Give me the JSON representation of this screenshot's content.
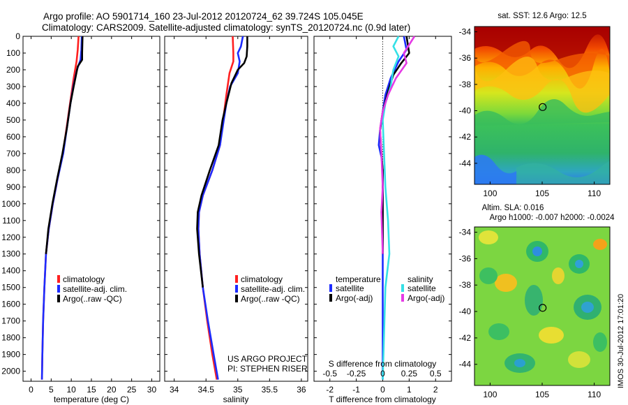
{
  "header": {
    "line1": "Argo profile: AO 5901714_160 23-Jul-2012 20120724_62 39.724S 105.045E",
    "line2": "Climatology: CARS2009. Satellite-adjusted climatology: synTS_20120724.nc (0.9d later)"
  },
  "colors": {
    "climatology": "#ff2020",
    "satellite": "#1c2bff",
    "argo": "#000000",
    "sal_satellite": "#35e0e6",
    "sal_argo": "#e53ae5"
  },
  "depth_ticks": [
    "0",
    "100",
    "200",
    "300",
    "400",
    "500",
    "600",
    "700",
    "800",
    "900",
    "1000",
    "1100",
    "1200",
    "1300",
    "1400",
    "1500",
    "1600",
    "1700",
    "1800",
    "1900",
    "2000"
  ],
  "chart_data": [
    {
      "type": "line",
      "id": "temperature",
      "xlabel": "temperature (deg C)",
      "ylabel": "",
      "xlim": [
        -2,
        32
      ],
      "ylim": [
        2060,
        0
      ],
      "xticks": [
        0,
        5,
        10,
        15,
        20,
        25,
        30
      ],
      "xtick_labels": [
        "0",
        "5",
        "10",
        "15",
        "20",
        "25",
        "30"
      ],
      "legend": [
        "climatology",
        "satellite-adj. clim.",
        "Argo(..raw -QC)"
      ],
      "series": [
        {
          "name": "climatology",
          "color": "#ff2020",
          "points": [
            [
              11.8,
              0
            ],
            [
              11.6,
              80
            ],
            [
              11.3,
              150
            ],
            [
              10.6,
              250
            ],
            [
              9.7,
              400
            ],
            [
              8.8,
              550
            ],
            [
              7.9,
              700
            ],
            [
              6.6,
              850
            ],
            [
              5.4,
              1000
            ],
            [
              4.4,
              1150
            ],
            [
              3.7,
              1300
            ],
            [
              3.3,
              1500
            ],
            [
              3.0,
              1700
            ],
            [
              2.8,
              1900
            ],
            [
              2.7,
              2050
            ]
          ]
        },
        {
          "name": "satellite-adj. clim.",
          "color": "#1c2bff",
          "points": [
            [
              12.6,
              0
            ],
            [
              12.5,
              80
            ],
            [
              12.3,
              140
            ],
            [
              11.4,
              200
            ],
            [
              10.5,
              300
            ],
            [
              9.8,
              400
            ],
            [
              8.9,
              550
            ],
            [
              8.0,
              700
            ],
            [
              6.6,
              850
            ],
            [
              5.4,
              1000
            ],
            [
              4.4,
              1150
            ],
            [
              3.7,
              1300
            ],
            [
              3.3,
              1500
            ],
            [
              3.0,
              1700
            ],
            [
              2.8,
              1900
            ],
            [
              2.7,
              2050
            ]
          ]
        },
        {
          "name": "Argo(..raw -QC)",
          "color": "#000000",
          "points": [
            [
              12.8,
              0
            ],
            [
              12.7,
              100
            ],
            [
              12.7,
              140
            ],
            [
              11.6,
              180
            ],
            [
              10.6,
              300
            ],
            [
              9.8,
              400
            ],
            [
              8.9,
              550
            ],
            [
              7.8,
              700
            ],
            [
              6.5,
              850
            ],
            [
              5.3,
              1000
            ],
            [
              4.3,
              1150
            ],
            [
              3.7,
              1300
            ]
          ]
        }
      ]
    },
    {
      "type": "line",
      "id": "salinity",
      "xlabel": "salinity",
      "ylabel": "",
      "xlim": [
        33.85,
        36.1
      ],
      "xticks": [
        34,
        34.5,
        35,
        35.5,
        36
      ],
      "xtick_labels": [
        "34",
        "34.5",
        "35",
        "35.5",
        "36"
      ],
      "legend": [
        "climatology",
        "satellite-adj. clim.",
        "Argo(..raw -QC)"
      ],
      "annotation": [
        "US ARGO PROJECT",
        "PI: STEPHEN RISER"
      ],
      "series": [
        {
          "name": "climatology",
          "color": "#ff2020",
          "points": [
            [
              34.92,
              0
            ],
            [
              34.93,
              100
            ],
            [
              34.93,
              150
            ],
            [
              34.87,
              220
            ],
            [
              34.82,
              350
            ],
            [
              34.77,
              500
            ],
            [
              34.72,
              650
            ],
            [
              34.6,
              800
            ],
            [
              34.45,
              950
            ],
            [
              34.39,
              1050
            ],
            [
              34.38,
              1150
            ],
            [
              34.4,
              1300
            ],
            [
              34.45,
              1500
            ],
            [
              34.52,
              1700
            ],
            [
              34.6,
              1900
            ],
            [
              34.67,
              2050
            ]
          ]
        },
        {
          "name": "satellite-adj. clim.",
          "color": "#1c2bff",
          "points": [
            [
              35.08,
              0
            ],
            [
              35.05,
              60
            ],
            [
              35.0,
              100
            ],
            [
              35.03,
              150
            ],
            [
              35.0,
              220
            ],
            [
              34.88,
              300
            ],
            [
              34.82,
              400
            ],
            [
              34.78,
              500
            ],
            [
              34.72,
              650
            ],
            [
              34.6,
              800
            ],
            [
              34.45,
              950
            ],
            [
              34.39,
              1050
            ],
            [
              34.38,
              1150
            ],
            [
              34.4,
              1300
            ],
            [
              34.45,
              1500
            ],
            [
              34.53,
              1700
            ],
            [
              34.62,
              1900
            ],
            [
              34.69,
              2050
            ]
          ]
        },
        {
          "name": "Argo(..raw -QC)",
          "color": "#000000",
          "points": [
            [
              35.15,
              0
            ],
            [
              35.15,
              60
            ],
            [
              35.14,
              120
            ],
            [
              35.1,
              160
            ],
            [
              35.0,
              200
            ],
            [
              34.9,
              280
            ],
            [
              34.82,
              400
            ],
            [
              34.76,
              500
            ],
            [
              34.7,
              650
            ],
            [
              34.56,
              800
            ],
            [
              34.43,
              950
            ],
            [
              34.37,
              1050
            ],
            [
              34.36,
              1150
            ],
            [
              34.39,
              1300
            ],
            [
              34.45,
              1500
            ]
          ]
        }
      ]
    },
    {
      "type": "line",
      "id": "differences",
      "xlabel": "T difference from climatology",
      "xlabel_top": "S difference from climatology",
      "xlim": [
        -2.6,
        2.6
      ],
      "xticks": [
        -2,
        -1,
        0,
        1,
        2
      ],
      "xtick_labels": [
        "-2",
        "-1",
        "0",
        "1",
        "2"
      ],
      "sticks": [
        -0.5,
        -0.25,
        0,
        0.25,
        0.5
      ],
      "stick_labels": [
        "-0.5",
        "-0.25",
        "0",
        "0.25",
        "0.5"
      ],
      "legend_titles": [
        "temperature",
        "salinity"
      ],
      "legend": [
        "satellite",
        "Argo(-adj)",
        "satellite",
        "Argo(-adj)"
      ],
      "series": [
        {
          "name": "temperature satellite",
          "color": "#1c2bff",
          "points": [
            [
              0.8,
              0
            ],
            [
              0.9,
              80
            ],
            [
              0.6,
              150
            ],
            [
              0.3,
              250
            ],
            [
              0.1,
              350
            ],
            [
              0.0,
              450
            ],
            [
              -0.1,
              560
            ],
            [
              -0.15,
              650
            ],
            [
              -0.05,
              720
            ],
            [
              0.0,
              800
            ],
            [
              0.0,
              1000
            ],
            [
              0.0,
              2050
            ]
          ]
        },
        {
          "name": "temperature Argo(-adj)",
          "color": "#000000",
          "points": [
            [
              0.9,
              0
            ],
            [
              1.0,
              100
            ],
            [
              0.7,
              160
            ],
            [
              0.4,
              230
            ],
            [
              0.2,
              330
            ],
            [
              0.0,
              450
            ],
            [
              -0.1,
              560
            ],
            [
              -0.05,
              700
            ],
            [
              0.0,
              800
            ],
            [
              0.0,
              1300
            ]
          ]
        },
        {
          "name": "salinity satellite",
          "color": "#35e0e6",
          "points": [
            [
              0.6,
              0
            ],
            [
              0.4,
              60
            ],
            [
              0.6,
              120
            ],
            [
              0.4,
              200
            ],
            [
              0.3,
              300
            ],
            [
              0.1,
              400
            ],
            [
              0.0,
              500
            ],
            [
              0.05,
              700
            ],
            [
              0.1,
              900
            ],
            [
              0.2,
              1100
            ],
            [
              0.25,
              1300
            ],
            [
              0.1,
              1500
            ],
            [
              0.0,
              2050
            ]
          ]
        },
        {
          "name": "salinity Argo(-adj)",
          "color": "#e53ae5",
          "points": [
            [
              1.2,
              0
            ],
            [
              0.8,
              100
            ],
            [
              0.9,
              160
            ],
            [
              0.5,
              250
            ],
            [
              0.2,
              350
            ],
            [
              0.0,
              450
            ],
            [
              -0.1,
              550
            ],
            [
              -0.05,
              700
            ],
            [
              0.0,
              900
            ],
            [
              -0.05,
              1050
            ],
            [
              0.0,
              1300
            ]
          ]
        }
      ]
    },
    {
      "type": "heatmap",
      "id": "sst-map",
      "title": "sat. SST: 12.6 Argo: 12.5",
      "xlim": [
        98.5,
        111.5
      ],
      "ylim": [
        -45.6,
        -33.6
      ],
      "xticks": [
        100,
        105,
        110
      ],
      "xtick_labels": [
        "100",
        "105",
        "110"
      ],
      "yticks": [
        -34,
        -36,
        -38,
        -40,
        -42,
        -44
      ],
      "ytick_labels": [
        "-34",
        "-36",
        "-38",
        "-40",
        "-42",
        "-44"
      ],
      "marker": {
        "lon": 105.045,
        "lat": -39.724
      }
    },
    {
      "type": "heatmap",
      "id": "sla-map",
      "title": "Altim. SLA: 0.016",
      "subtitle": "Argo h1000: -0.007 h2000: -0.0024",
      "xlim": [
        98.5,
        111.5
      ],
      "ylim": [
        -45.6,
        -33.6
      ],
      "xticks": [
        100,
        105,
        110
      ],
      "xtick_labels": [
        "100",
        "105",
        "110"
      ],
      "yticks": [
        -34,
        -36,
        -38,
        -40,
        -42,
        -44
      ],
      "ytick_labels": [
        "-34",
        "-36",
        "-38",
        "-40",
        "-42",
        "-44"
      ],
      "marker": {
        "lon": 105.045,
        "lat": -39.724
      },
      "side_label": "IMOS 30-Jul-2012 17:01:20"
    }
  ]
}
